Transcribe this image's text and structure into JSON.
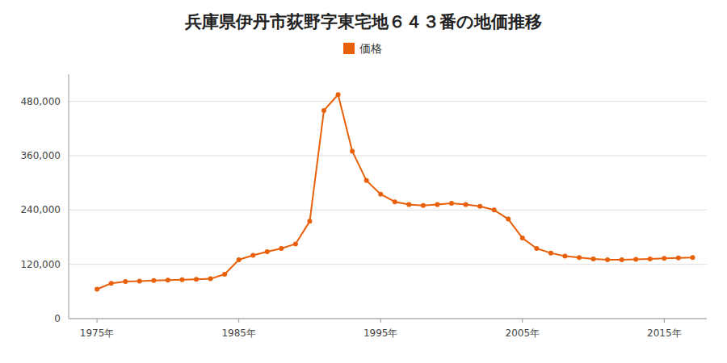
{
  "chart_data": {
    "type": "line",
    "title": "兵庫県伊丹市荻野字東宅地６４３番の地価推移",
    "x": [
      1975,
      1976,
      1977,
      1978,
      1979,
      1980,
      1981,
      1982,
      1983,
      1984,
      1985,
      1986,
      1987,
      1988,
      1989,
      1990,
      1991,
      1992,
      1993,
      1994,
      1995,
      1996,
      1997,
      1998,
      1999,
      2000,
      2001,
      2002,
      2003,
      2004,
      2005,
      2006,
      2007,
      2008,
      2009,
      2010,
      2011,
      2012,
      2013,
      2014,
      2015,
      2016,
      2017
    ],
    "series": [
      {
        "name": "価格",
        "color": "#e8600a",
        "marker": "circle",
        "values": [
          65000,
          78000,
          82000,
          83000,
          84000,
          85000,
          86000,
          87000,
          88000,
          98000,
          130000,
          140000,
          148000,
          155000,
          165000,
          215000,
          460000,
          495000,
          370000,
          305000,
          275000,
          258000,
          252000,
          250000,
          252000,
          255000,
          252000,
          248000,
          240000,
          220000,
          178000,
          155000,
          145000,
          138000,
          135000,
          132000,
          130000,
          130000,
          131000,
          132000,
          133000,
          134000,
          135000
        ]
      }
    ],
    "xlim": [
      1973,
      2018
    ],
    "xticks": [
      {
        "value": 1975,
        "label": "1975年"
      },
      {
        "value": 1985,
        "label": "1985年"
      },
      {
        "value": 1995,
        "label": "1995年"
      },
      {
        "value": 2005,
        "label": "2005年"
      },
      {
        "value": 2015,
        "label": "2015年"
      }
    ],
    "ylim": [
      0,
      540000
    ],
    "yticks": [
      0,
      {
        "value": 120000,
        "label": "120,000"
      },
      {
        "value": 240000,
        "label": "240,000"
      },
      {
        "value": 360000,
        "label": "360,000"
      },
      {
        "value": 480000,
        "label": "480,000"
      }
    ],
    "grid": true,
    "legend": "top"
  }
}
